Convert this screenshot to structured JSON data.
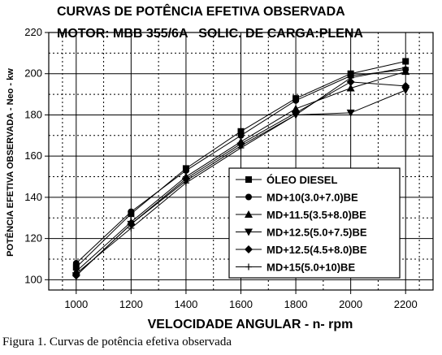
{
  "caption": "Figura 1. Curvas de potência efetiva observada",
  "chart_data": {
    "type": "line",
    "title": "CURVAS DE POTÊNCIA EFETIVA OBSERVADA",
    "subtitle": "MOTOR: MBB 355/6A   SOLIC. DE CARGA:PLENA",
    "xlabel": "VELOCIDADE ANGULAR - n- rpm",
    "ylabel": "POTÊNCIA EFETIVA OBSERVADA - Neo - kw",
    "x": [
      1000,
      1200,
      1400,
      1600,
      1800,
      2000,
      2200
    ],
    "xlim": [
      900,
      2300
    ],
    "ylim": [
      95,
      220
    ],
    "xticks": [
      1000,
      1200,
      1400,
      1600,
      1800,
      2000,
      2200
    ],
    "yticks": [
      100,
      120,
      140,
      160,
      180,
      200,
      220
    ],
    "grid": "dotted",
    "legend_position": "bottom-right",
    "series": [
      {
        "name": "ÓLEO DIESEL",
        "marker": "square",
        "values": [
          106,
          132,
          154,
          172,
          188,
          200,
          206
        ]
      },
      {
        "name": "MD+10(3.0+7.0)BE",
        "marker": "circle",
        "values": [
          108,
          133,
          153,
          170,
          187,
          199,
          202
        ]
      },
      {
        "name": "MD+11.5(3.5+8.0)BE",
        "marker": "triangle-up",
        "values": [
          104,
          128,
          150,
          167,
          183,
          193,
          201
        ]
      },
      {
        "name": "MD+12.5(5.0+7.5)BE",
        "marker": "triangle-down",
        "values": [
          102,
          127,
          148,
          165,
          180,
          181,
          192
        ]
      },
      {
        "name": "MD+12.5(4.5+8.0)BE",
        "marker": "diamond",
        "values": [
          102,
          127,
          149,
          166,
          181,
          196,
          194
        ]
      },
      {
        "name": "MD+15(5.0+10)BE",
        "marker": "plus",
        "values": [
          103,
          125,
          147,
          164,
          180,
          198,
          203
        ]
      }
    ]
  }
}
